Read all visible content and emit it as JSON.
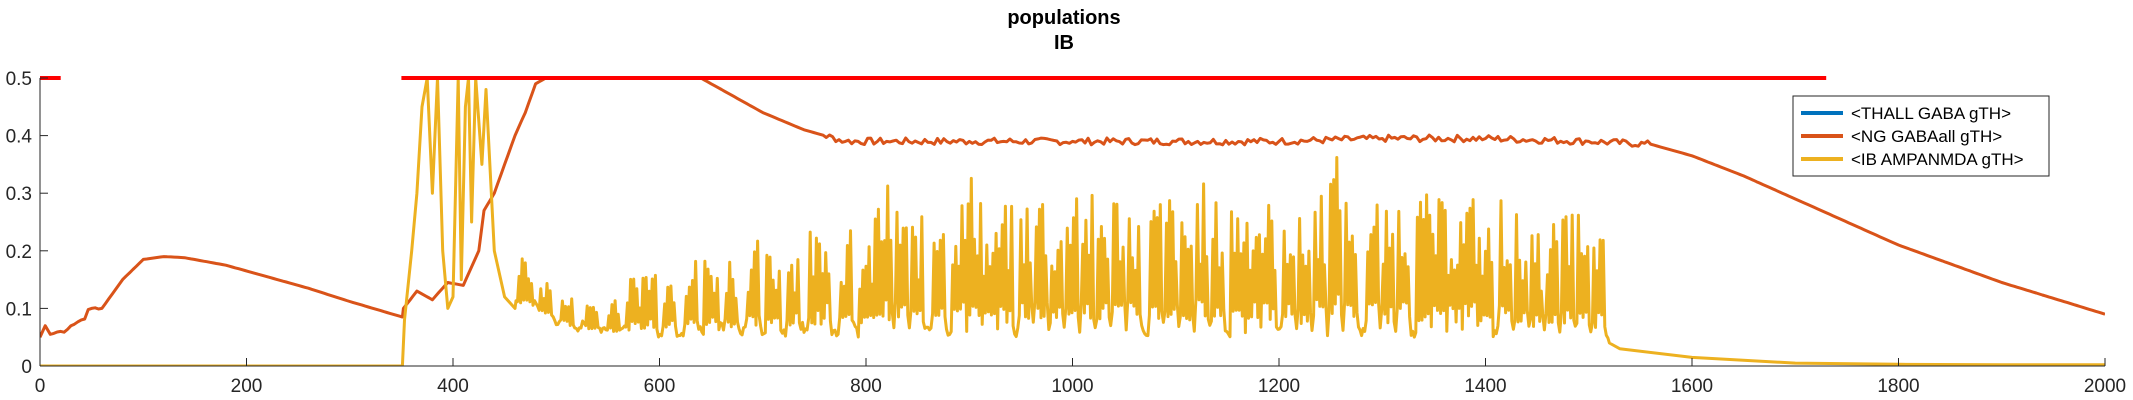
{
  "chart_data": {
    "type": "line",
    "title": "populations",
    "subtitle": "IB",
    "xlabel": "",
    "ylabel": "",
    "xlim": [
      0,
      2000
    ],
    "ylim": [
      0,
      0.5
    ],
    "xticks": [
      0,
      200,
      400,
      600,
      800,
      1000,
      1200,
      1400,
      1600,
      1800,
      2000
    ],
    "yticks": [
      0,
      0.1,
      0.2,
      0.3,
      0.4,
      0.5
    ],
    "ytick_labels": [
      "0",
      "0.1",
      "0.2",
      "0.3",
      "0.4",
      "0.5"
    ],
    "grid": false,
    "legend_position": "top-right",
    "series": [
      {
        "name": "<THALL GABA gTH>",
        "color": "#0072BD",
        "points": []
      },
      {
        "name": "<NG GABAall gTH>",
        "color": "#D95319",
        "points": [
          [
            0,
            0.05
          ],
          [
            5,
            0.07
          ],
          [
            10,
            0.055
          ],
          [
            20,
            0.06
          ],
          [
            30,
            0.07
          ],
          [
            40,
            0.08
          ],
          [
            50,
            0.1
          ],
          [
            60,
            0.1
          ],
          [
            80,
            0.15
          ],
          [
            100,
            0.185
          ],
          [
            120,
            0.19
          ],
          [
            140,
            0.188
          ],
          [
            180,
            0.175
          ],
          [
            220,
            0.155
          ],
          [
            260,
            0.135
          ],
          [
            300,
            0.112
          ],
          [
            351,
            0.085
          ],
          [
            352,
            0.1
          ],
          [
            365,
            0.13
          ],
          [
            380,
            0.115
          ],
          [
            395,
            0.145
          ],
          [
            410,
            0.14
          ],
          [
            425,
            0.2
          ],
          [
            430,
            0.27
          ],
          [
            440,
            0.3
          ],
          [
            450,
            0.35
          ],
          [
            460,
            0.4
          ],
          [
            470,
            0.44
          ],
          [
            480,
            0.49
          ],
          [
            490,
            0.5
          ],
          [
            640,
            0.5
          ],
          [
            660,
            0.48
          ],
          [
            700,
            0.44
          ],
          [
            740,
            0.41
          ],
          [
            780,
            0.39
          ],
          [
            820,
            0.39
          ],
          [
            900,
            0.39
          ],
          [
            1000,
            0.39
          ],
          [
            1100,
            0.39
          ],
          [
            1200,
            0.39
          ],
          [
            1300,
            0.395
          ],
          [
            1400,
            0.395
          ],
          [
            1500,
            0.39
          ],
          [
            1560,
            0.385
          ],
          [
            1600,
            0.365
          ],
          [
            1650,
            0.33
          ],
          [
            1700,
            0.29
          ],
          [
            1800,
            0.21
          ],
          [
            1900,
            0.145
          ],
          [
            2000,
            0.09
          ]
        ]
      },
      {
        "name": "<IB AMPANMDA gTH>",
        "color": "#EDB120",
        "points": [
          [
            0,
            0.0
          ],
          [
            350,
            0.0
          ],
          [
            351,
            0.0
          ],
          [
            353,
            0.08
          ],
          [
            360,
            0.2
          ],
          [
            365,
            0.3
          ],
          [
            370,
            0.45
          ],
          [
            375,
            0.5
          ],
          [
            380,
            0.3
          ],
          [
            385,
            0.5
          ],
          [
            390,
            0.2
          ],
          [
            395,
            0.1
          ],
          [
            400,
            0.12
          ],
          [
            405,
            0.5
          ],
          [
            408,
            0.15
          ],
          [
            412,
            0.45
          ],
          [
            415,
            0.5
          ],
          [
            418,
            0.25
          ],
          [
            422,
            0.5
          ],
          [
            428,
            0.35
          ],
          [
            432,
            0.48
          ],
          [
            440,
            0.2
          ],
          [
            450,
            0.12
          ],
          [
            460,
            0.1
          ],
          [
            480,
            0.09
          ],
          [
            500,
            0.07
          ],
          [
            520,
            0.06
          ],
          [
            540,
            0.055
          ],
          [
            560,
            0.05
          ],
          [
            600,
            0.05
          ],
          [
            700,
            0.05
          ],
          [
            800,
            0.05
          ],
          [
            900,
            0.05
          ],
          [
            1000,
            0.05
          ],
          [
            1100,
            0.05
          ],
          [
            1200,
            0.05
          ],
          [
            1300,
            0.05
          ],
          [
            1400,
            0.05
          ],
          [
            1450,
            0.045
          ],
          [
            1520,
            0.04
          ],
          [
            1530,
            0.03
          ],
          [
            1600,
            0.015
          ],
          [
            1700,
            0.005
          ],
          [
            1800,
            0.003
          ],
          [
            1900,
            0.002
          ],
          [
            2000,
            0.002
          ]
        ],
        "burst_peaks": [
          [
            470,
            0.19
          ],
          [
            490,
            0.15
          ],
          [
            510,
            0.12
          ],
          [
            535,
            0.12
          ],
          [
            555,
            0.13
          ],
          [
            575,
            0.16
          ],
          [
            590,
            0.18
          ],
          [
            610,
            0.17
          ],
          [
            630,
            0.19
          ],
          [
            650,
            0.2
          ],
          [
            670,
            0.2
          ],
          [
            690,
            0.22
          ],
          [
            710,
            0.2
          ],
          [
            730,
            0.22
          ],
          [
            750,
            0.25
          ],
          [
            760,
            0.29
          ],
          [
            780,
            0.24
          ],
          [
            800,
            0.21
          ],
          [
            810,
            0.3
          ],
          [
            820,
            0.32
          ],
          [
            835,
            0.3
          ],
          [
            850,
            0.26
          ],
          [
            870,
            0.33
          ],
          [
            890,
            0.3
          ],
          [
            905,
            0.34
          ],
          [
            920,
            0.24
          ],
          [
            935,
            0.28
          ],
          [
            955,
            0.3
          ],
          [
            970,
            0.32
          ],
          [
            985,
            0.27
          ],
          [
            1000,
            0.36
          ],
          [
            1015,
            0.3
          ],
          [
            1030,
            0.3
          ],
          [
            1045,
            0.31
          ],
          [
            1060,
            0.3
          ],
          [
            1080,
            0.3
          ],
          [
            1095,
            0.31
          ],
          [
            1110,
            0.27
          ],
          [
            1125,
            0.32
          ],
          [
            1140,
            0.29
          ],
          [
            1160,
            0.3
          ],
          [
            1175,
            0.3
          ],
          [
            1190,
            0.29
          ],
          [
            1210,
            0.3
          ],
          [
            1225,
            0.26
          ],
          [
            1240,
            0.32
          ],
          [
            1255,
            0.37
          ],
          [
            1270,
            0.3
          ],
          [
            1290,
            0.3
          ],
          [
            1305,
            0.27
          ],
          [
            1320,
            0.3
          ],
          [
            1340,
            0.3
          ],
          [
            1355,
            0.29
          ],
          [
            1370,
            0.28
          ],
          [
            1385,
            0.3
          ],
          [
            1400,
            0.25
          ],
          [
            1420,
            0.3
          ],
          [
            1435,
            0.27
          ],
          [
            1450,
            0.23
          ],
          [
            1465,
            0.26
          ],
          [
            1480,
            0.29
          ],
          [
            1495,
            0.27
          ],
          [
            1510,
            0.27
          ]
        ]
      },
      {
        "name": "",
        "color": "#FF0000",
        "points": [
          [
            0,
            0.5
          ],
          [
            20,
            0.5
          ],
          [
            350,
            0.5
          ],
          [
            1730,
            0.5
          ]
        ],
        "segments": [
          [
            [
              0,
              0.5
            ],
            [
              20,
              0.5
            ]
          ],
          [
            [
              350,
              0.5
            ],
            [
              1730,
              0.5
            ]
          ]
        ]
      }
    ]
  }
}
